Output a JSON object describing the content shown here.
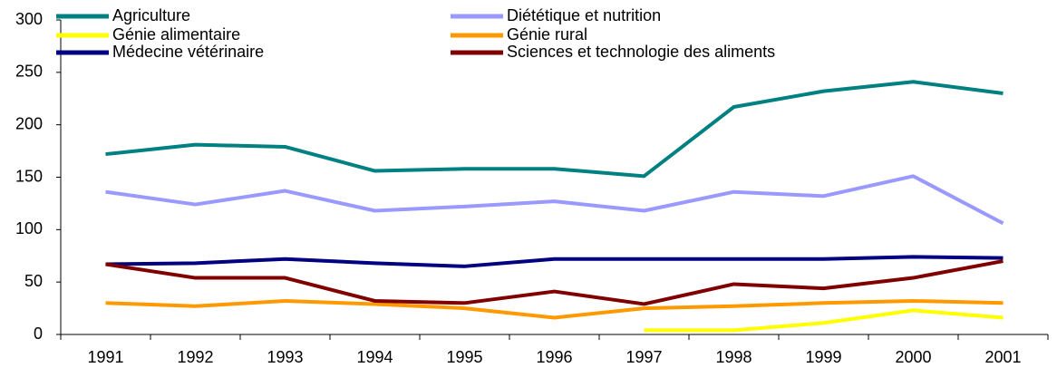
{
  "chart_data": {
    "type": "line",
    "categories": [
      "1991",
      "1992",
      "1993",
      "1994",
      "1995",
      "1996",
      "1997",
      "1998",
      "1999",
      "2000",
      "2001"
    ],
    "series": [
      {
        "name": "Agriculture",
        "color": "#008080",
        "values": [
          172,
          181,
          179,
          156,
          158,
          158,
          151,
          217,
          232,
          241,
          230
        ]
      },
      {
        "name": "Diététique et nutrition",
        "color": "#9999ff",
        "values": [
          136,
          124,
          137,
          118,
          122,
          127,
          118,
          136,
          132,
          151,
          106
        ]
      },
      {
        "name": "Génie alimentaire",
        "color": "#ffff00",
        "values": [
          null,
          null,
          null,
          null,
          null,
          null,
          4,
          4,
          11,
          23,
          16
        ]
      },
      {
        "name": "Génie rural",
        "color": "#ff9900",
        "values": [
          30,
          27,
          32,
          29,
          25,
          16,
          25,
          27,
          30,
          32,
          30
        ]
      },
      {
        "name": "Médecine vétérinaire",
        "color": "#000080",
        "values": [
          67,
          68,
          72,
          68,
          65,
          72,
          72,
          72,
          72,
          74,
          73
        ]
      },
      {
        "name": "Sciences et technologie des aliments",
        "color": "#800000",
        "values": [
          67,
          54,
          54,
          32,
          30,
          41,
          29,
          48,
          44,
          54,
          70
        ]
      }
    ],
    "ylim": [
      0,
      300
    ],
    "yticks": [
      0,
      50,
      100,
      150,
      200,
      250,
      300
    ],
    "grid": false
  }
}
